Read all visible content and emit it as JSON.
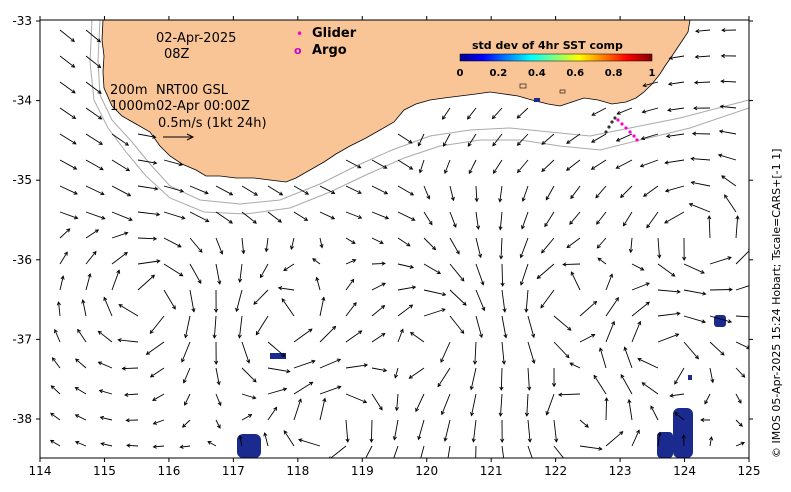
{
  "map": {
    "date": "02-Apr-2025",
    "hour": "08Z",
    "depth_note": "200m",
    "depth_contour": "1000m",
    "product": "NRT00 GSL",
    "product_time": "02-Apr 00:00Z",
    "scale_note": "0.5m/s (1kt 24h)",
    "copyright": "© IMOS 05-Apr-2025 15:24 Hobart; Tscale=CARS+[-1 1]",
    "x_ticks": [
      "114",
      "115",
      "116",
      "117",
      "118",
      "119",
      "120",
      "121",
      "122",
      "123",
      "124",
      "125"
    ],
    "y_ticks": [
      "-33",
      "-34",
      "-35",
      "-36",
      "-37",
      "-38"
    ],
    "colors": {
      "land": "#f9c596",
      "sst_patch": "#1a2a8e",
      "glider": "#ff00cc",
      "argo": "#cc00cc"
    }
  },
  "legend": {
    "glider_label": "Glider",
    "argo_label": "Argo",
    "glider_marker": "•",
    "argo_marker": "o"
  },
  "colorbar": {
    "title": "std dev of 4hr SST comp",
    "ticks": [
      "0",
      "0.2",
      "0.4",
      "0.6",
      "0.8",
      "1"
    ]
  }
}
